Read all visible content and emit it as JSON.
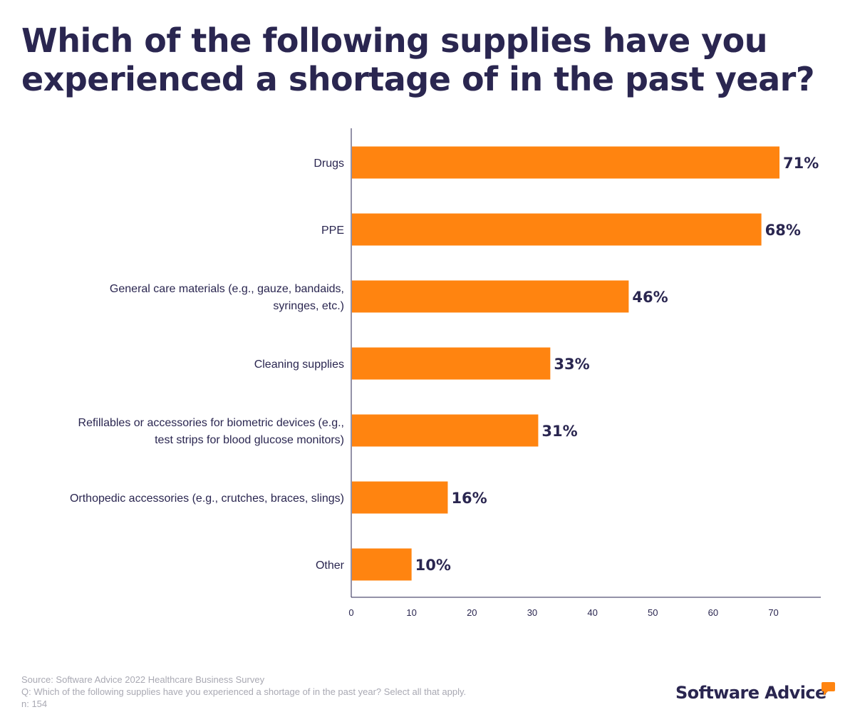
{
  "header": {
    "title_line1": "Which of the following supplies have you",
    "title_line2": "experienced a shortage of in the past year?"
  },
  "chart_data": {
    "type": "bar",
    "orientation": "horizontal",
    "title": "Which of the following supplies have you experienced a shortage of in the past year?",
    "categories": [
      [
        "Drugs"
      ],
      [
        "PPE"
      ],
      [
        "General care materials (e.g., gauze, bandaids,",
        "syringes, etc.)"
      ],
      [
        "Cleaning supplies"
      ],
      [
        "Refillables or accessories for biometric devices (e.g.,",
        "test strips for blood glucose monitors)"
      ],
      [
        "Orthopedic accessories (e.g., crutches, braces, slings)"
      ],
      [
        "Other"
      ]
    ],
    "values": [
      71,
      68,
      46,
      33,
      31,
      16,
      10
    ],
    "value_labels": [
      "71%",
      "68%",
      "46%",
      "33%",
      "31%",
      "16%",
      "10%"
    ],
    "xlim": [
      0,
      78
    ],
    "xticks": [
      0,
      10,
      20,
      30,
      40,
      50,
      60,
      70
    ],
    "xlabel": "",
    "ylabel": "",
    "grid": false,
    "bar_color": "#ff8410",
    "text_color": "#2a2650"
  },
  "footer": {
    "source": "Source: Software Advice 2022 Healthcare Business Survey",
    "question": "Q: Which of the following supplies have you experienced a shortage of in the past year? Select all that apply.",
    "sample": "n: 154"
  },
  "brand": {
    "name": "Software Advice",
    "accent": "#ff8410",
    "icon": "speech-bubble-icon"
  }
}
